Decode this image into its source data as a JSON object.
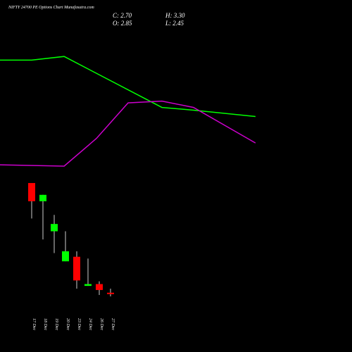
{
  "chart_data": {
    "type": "candlestick",
    "title": "NIFTY 24700 PE Options Chart Munafasutra.com",
    "ohlc_labels": {
      "close": "C: 2.70",
      "high": "H: 3.30",
      "open": "O: 2.85",
      "low": "L: 2.45"
    },
    "categories": [
      "17 Dec",
      "18 Dec",
      "19 Dec",
      "20 Dec",
      "23 Dec",
      "24 Dec",
      "26 Dec",
      "27 Dec"
    ],
    "open": [
      14.9,
      12.9,
      9.6,
      6.3,
      6.8,
      3.6,
      3.8,
      2.85
    ],
    "high": [
      14.9,
      13.6,
      11.4,
      9.6,
      7.4,
      6.6,
      4.1,
      3.3
    ],
    "low": [
      11.0,
      8.7,
      7.2,
      6.3,
      3.3,
      3.6,
      2.6,
      2.45
    ],
    "close": [
      12.9,
      13.6,
      10.4,
      7.4,
      4.2,
      3.8,
      3.15,
      2.7
    ],
    "up_color": "#00ff00",
    "down_color": "#ff0000",
    "xlim": [
      -2.8125,
      28.4375
    ],
    "ylim": [
      -3.66,
      35.0
    ],
    "lines": [
      {
        "color": "#00ff00",
        "x": [
          -2.81,
          0,
          2.88,
          11.56,
          14.37,
          19.87
        ],
        "values": [
          28.4,
          28.4,
          28.8,
          23.2,
          22.9,
          22.2
        ]
      },
      {
        "color": "#cc00cc",
        "x": [
          -2.81,
          2.88,
          5.75,
          8.56,
          11.56,
          14.37,
          19.87
        ],
        "values": [
          16.9,
          16.75,
          19.8,
          23.7,
          23.9,
          23.2,
          19.3
        ]
      }
    ]
  }
}
